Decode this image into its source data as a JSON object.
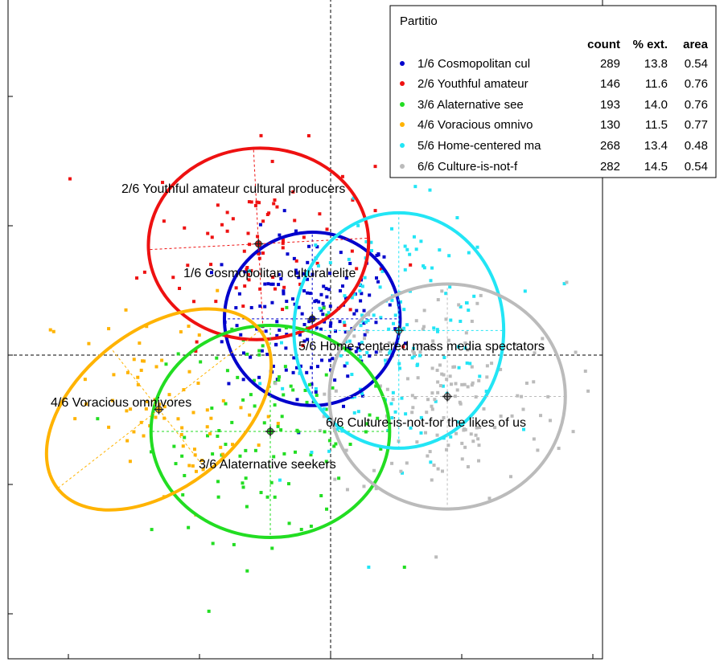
{
  "chart_data": {
    "type": "scatter",
    "title": "",
    "xlabel": "",
    "ylabel": "",
    "xlim": [
      -1.0,
      1.0
    ],
    "ylim": [
      -1.0,
      1.0
    ],
    "grid": false,
    "reference_lines": {
      "x": 0,
      "y": 0,
      "style": "dashed"
    },
    "legend": {
      "placement": "top-right",
      "title": "Partitio",
      "columns": [
        "count",
        "% ext.",
        "area"
      ],
      "rows": [
        {
          "label": "1/6 Cosmopolitan cul",
          "count": "289",
          "ext": "13.8",
          "area": "0.54",
          "color": "#0000cc"
        },
        {
          "label": "2/6 Youthful amateur",
          "count": "146",
          "ext": "11.6",
          "area": "0.76",
          "color": "#ee1111"
        },
        {
          "label": "3/6 Alaternative see",
          "count": "193",
          "ext": "14.0",
          "area": "0.76",
          "color": "#22dd22"
        },
        {
          "label": "4/6 Voracious omnivo",
          "count": "130",
          "ext": "11.5",
          "area": "0.77",
          "color": "#ffb300"
        },
        {
          "label": "5/6 Home-centered ma",
          "count": "268",
          "ext": "13.4",
          "area": "0.48",
          "color": "#22e5f5"
        },
        {
          "label": "6/6 Culture-is-not-f",
          "count": "282",
          "ext": "14.5",
          "area": "0.54",
          "color": "#bbbbbb"
        }
      ]
    },
    "clusters": [
      {
        "name": "1/6 Cosmopolitan cultural elite",
        "color": "#0000cc",
        "center": [
          -0.14,
          0.28
        ],
        "ellipse": {
          "rx": 0.67,
          "ry": 0.67,
          "angle": 0
        },
        "n_points": 289
      },
      {
        "name": "2/6 Youthful amateur cultural producers",
        "color": "#ee1111",
        "center": [
          -0.55,
          0.86
        ],
        "ellipse": {
          "rx": 0.84,
          "ry": 0.74,
          "angle": -3
        },
        "n_points": 146
      },
      {
        "name": "3/6 Alaternative seekers",
        "color": "#22dd22",
        "center": [
          -0.46,
          -0.59
        ],
        "ellipse": {
          "rx": 0.91,
          "ry": 0.82,
          "angle": 0
        },
        "n_points": 193
      },
      {
        "name": "4/6 Voracious omnivores",
        "color": "#ffb300",
        "center": [
          -1.31,
          -0.42
        ],
        "ellipse": {
          "rx": 0.98,
          "ry": 0.61,
          "angle": -38
        },
        "n_points": 130
      },
      {
        "name": "5/6 Home-centered mass media spectators",
        "color": "#22e5f5",
        "center": [
          0.52,
          0.19
        ],
        "ellipse": {
          "rx": 0.8,
          "ry": 0.91,
          "angle": 0
        },
        "n_points": 268
      },
      {
        "name": "6/6 Culture-is-not-for the likes of us",
        "color": "#bbbbbb",
        "center": [
          0.89,
          -0.32
        ],
        "ellipse": {
          "rx": 0.9,
          "ry": 0.87,
          "angle": 0
        },
        "n_points": 282
      }
    ],
    "cluster_labels": [
      {
        "text": "2/6 Youthful amateur cultural producers"
      },
      {
        "text": "1/6 Cosmopolitan cultural elite"
      },
      {
        "text": "5/6 Home-centered mass media spectators"
      },
      {
        "text": "4/6 Voracious omnivores"
      },
      {
        "text": "6/6 Culture-is-not-for the likes of us"
      },
      {
        "text": "3/6 Alaternative seekers"
      }
    ]
  }
}
